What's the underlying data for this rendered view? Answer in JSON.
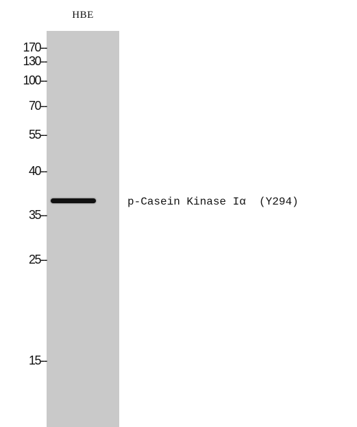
{
  "lane": {
    "label": "HBE"
  },
  "markers": [
    {
      "label": "170--"
    },
    {
      "label": "130--"
    },
    {
      "label": "100--"
    },
    {
      "label": "70--"
    },
    {
      "label": "55--"
    },
    {
      "label": "40--"
    },
    {
      "label": "35--"
    },
    {
      "label": "25--"
    },
    {
      "label": "15--"
    }
  ],
  "band": {
    "label": "p-Casein Kinase Iα  (Y294)"
  },
  "colors": {
    "lane": "#c9c9c9",
    "band": "#111111",
    "text": "#111111"
  }
}
